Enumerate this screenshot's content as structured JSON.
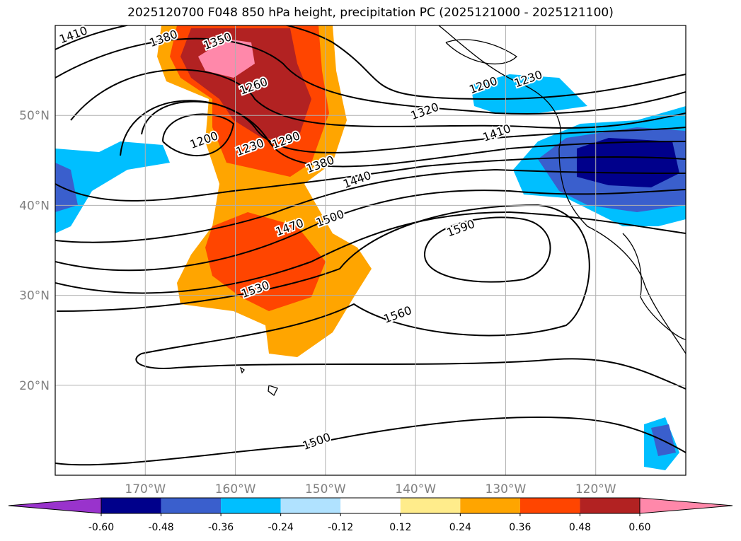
{
  "title": "2025120700 F048 850 hPa height, precipitation PC (2025121000 - 2025121100)",
  "chart_data": {
    "type": "map",
    "title": "2025120700 F048 850 hPa height, precipitation PC (2025121000 - 2025121100)",
    "lon_range": [
      -180,
      -110
    ],
    "lat_range": [
      10,
      60
    ],
    "lat_ticks": [
      {
        "v": 50,
        "label": "50°N"
      },
      {
        "v": 40,
        "label": "40°N"
      },
      {
        "v": 30,
        "label": "30°N"
      },
      {
        "v": 20,
        "label": "20°N"
      }
    ],
    "lon_ticks": [
      {
        "v": -170,
        "label": "170°W"
      },
      {
        "v": -160,
        "label": "160°W"
      },
      {
        "v": -150,
        "label": "150°W"
      },
      {
        "v": -140,
        "label": "140°W"
      },
      {
        "v": -130,
        "label": "130°W"
      },
      {
        "v": -120,
        "label": "120°W"
      }
    ],
    "grid": true,
    "contour_labels": [
      {
        "text": "1410",
        "lon": -178,
        "lat": 59
      },
      {
        "text": "1380",
        "lon": -168,
        "lat": 58.6
      },
      {
        "text": "1350",
        "lon": -162,
        "lat": 58.3
      },
      {
        "text": "1260",
        "lon": -158,
        "lat": 53.3
      },
      {
        "text": "1200",
        "lon": -163.5,
        "lat": 47.3
      },
      {
        "text": "1230",
        "lon": -158.4,
        "lat": 46.5
      },
      {
        "text": "1290",
        "lon": -154.4,
        "lat": 47.3
      },
      {
        "text": "1380",
        "lon": -150.6,
        "lat": 44.6
      },
      {
        "text": "1440",
        "lon": -146.5,
        "lat": 42.9
      },
      {
        "text": "1470",
        "lon": -154,
        "lat": 37.6
      },
      {
        "text": "1500",
        "lon": -149.5,
        "lat": 38.6
      },
      {
        "text": "1320",
        "lon": -139,
        "lat": 50.5
      },
      {
        "text": "1410",
        "lon": -131,
        "lat": 48.1
      },
      {
        "text": "1590",
        "lon": -135,
        "lat": 37.5
      },
      {
        "text": "1560",
        "lon": -142,
        "lat": 27.9
      },
      {
        "text": "1530",
        "lon": -157.8,
        "lat": 30.7
      },
      {
        "text": "1230",
        "lon": -127.5,
        "lat": 54.1
      },
      {
        "text": "1200",
        "lon": -132.5,
        "lat": 53.4
      },
      {
        "text": "1500",
        "lon": -151,
        "lat": 13.8
      }
    ],
    "colorbar": {
      "ticks": [
        "-0.60",
        "-0.48",
        "-0.36",
        "-0.24",
        "-0.12",
        "0.12",
        "0.24",
        "0.36",
        "0.48",
        "0.60"
      ],
      "colors": [
        "#9933cc",
        "#00008b",
        "#3a5fcd",
        "#00bfff",
        "#b0e2ff",
        "#ffffff",
        "#ffec8b",
        "#ffa500",
        "#ff4500",
        "#b22222",
        "#ff88aa"
      ],
      "extend": "both"
    }
  }
}
